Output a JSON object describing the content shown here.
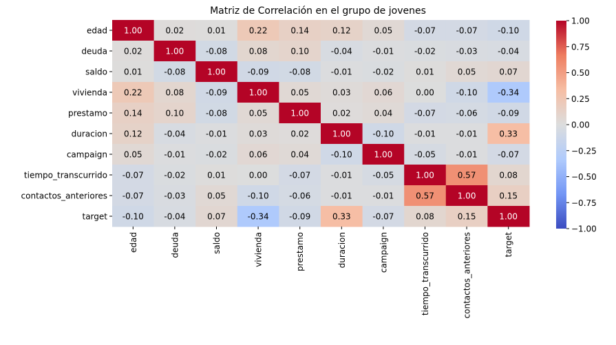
{
  "chart_data": {
    "type": "heatmap",
    "title": "Matriz de Correlación en el grupo de jovenes",
    "xlabel": "",
    "ylabel": "",
    "row_labels": [
      "edad",
      "deuda",
      "saldo",
      "vivienda",
      "prestamo",
      "duracion",
      "campaign",
      "tiempo_transcurrido",
      "contactos_anteriores",
      "target"
    ],
    "col_labels": [
      "edad",
      "deuda",
      "saldo",
      "vivienda",
      "prestamo",
      "duracion",
      "campaign",
      "tiempo_transcurrido",
      "contactos_anteriores",
      "target"
    ],
    "values": [
      [
        1.0,
        0.02,
        0.01,
        0.22,
        0.14,
        0.12,
        0.05,
        -0.07,
        -0.07,
        -0.1
      ],
      [
        0.02,
        1.0,
        -0.08,
        0.08,
        0.1,
        -0.04,
        -0.01,
        -0.02,
        -0.03,
        -0.04
      ],
      [
        0.01,
        -0.08,
        1.0,
        -0.09,
        -0.08,
        -0.01,
        -0.02,
        0.01,
        0.05,
        0.07
      ],
      [
        0.22,
        0.08,
        -0.09,
        1.0,
        0.05,
        0.03,
        0.06,
        -0.0,
        -0.1,
        -0.34
      ],
      [
        0.14,
        0.1,
        -0.08,
        0.05,
        1.0,
        0.02,
        0.04,
        -0.07,
        -0.06,
        -0.09
      ],
      [
        0.12,
        -0.04,
        -0.01,
        0.03,
        0.02,
        1.0,
        -0.1,
        -0.01,
        -0.01,
        0.33
      ],
      [
        0.05,
        -0.01,
        -0.02,
        0.06,
        0.04,
        -0.1,
        1.0,
        -0.05,
        -0.01,
        -0.07
      ],
      [
        -0.07,
        -0.02,
        0.01,
        -0.0,
        -0.07,
        -0.01,
        -0.05,
        1.0,
        0.57,
        0.08
      ],
      [
        -0.07,
        -0.03,
        0.05,
        -0.1,
        -0.06,
        -0.01,
        -0.01,
        0.57,
        1.0,
        0.15
      ],
      [
        -0.1,
        -0.04,
        0.07,
        -0.34,
        -0.09,
        0.33,
        -0.07,
        0.08,
        0.15,
        1.0
      ]
    ],
    "value_format": "2 decimals",
    "colormap": "coolwarm",
    "colorbar": {
      "vmin": -1.0,
      "vmax": 1.0,
      "ticks": [
        1.0,
        0.75,
        0.5,
        0.25,
        0.0,
        -0.25,
        -0.5,
        -0.75,
        -1.0
      ],
      "tick_labels": [
        "1.00",
        "0.75",
        "0.50",
        "0.25",
        "0.00",
        "−0.25",
        "−0.50",
        "−0.75",
        "−1.00"
      ],
      "colors": [
        "#3b4cc0",
        "#7396f5",
        "#b0cbfc",
        "#dcdddd",
        "#f6bea4",
        "#ee7d60",
        "#b40426"
      ]
    },
    "grid": false,
    "legend": "colorbar-right"
  }
}
